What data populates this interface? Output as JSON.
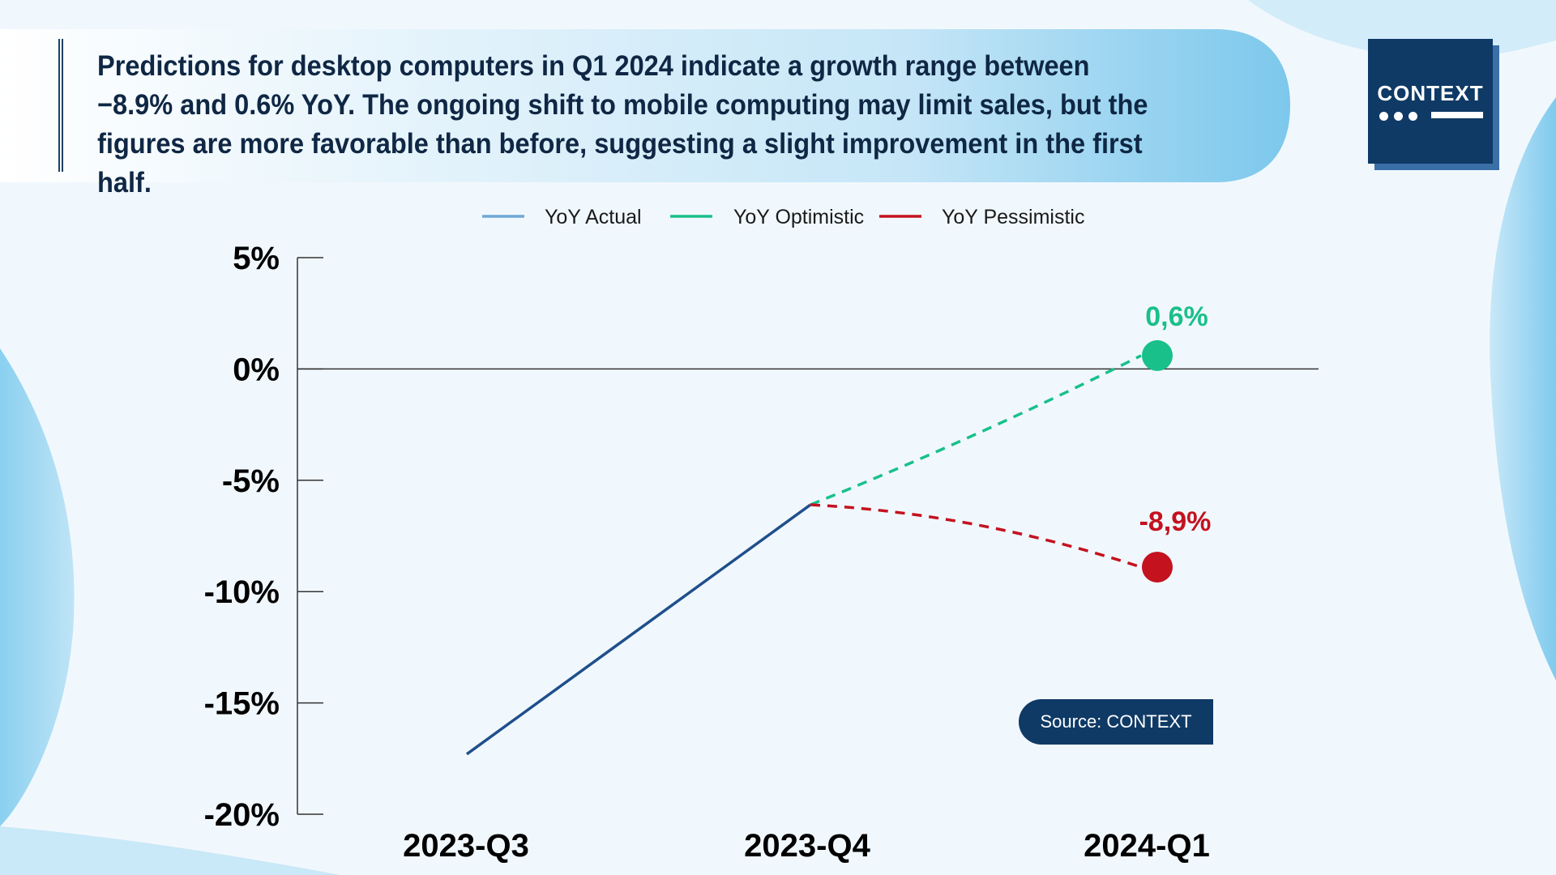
{
  "headline": "Predictions for desktop computers in Q1 2024 indicate a growth range between −8.9% and 0.6% YoY. The ongoing shift to mobile computing may limit sales, but the figures are more favorable than before, suggesting a slight improvement in the first half.",
  "logo": {
    "text": "CONTEXT"
  },
  "source": "Source: CONTEXT",
  "colors": {
    "actual_line": "#1f4f8c",
    "actual_legend": "#6fa8d8",
    "optimistic": "#19c08a",
    "pessimistic": "#c4121f",
    "navy": "#0f3a66"
  },
  "chart_data": {
    "type": "line",
    "categories": [
      "2023-Q3",
      "2023-Q4",
      "2024-Q1"
    ],
    "series": [
      {
        "name": "YoY Actual",
        "values": [
          -17.3,
          -6.1,
          null
        ],
        "style": "solid"
      },
      {
        "name": "YoY Optimistic",
        "values": [
          null,
          -6.1,
          0.6
        ],
        "style": "dashed"
      },
      {
        "name": "YoY Pessimistic",
        "values": [
          null,
          -6.1,
          -8.9
        ],
        "style": "dashed"
      }
    ],
    "point_labels": [
      {
        "series": "YoY Optimistic",
        "category": "2024-Q1",
        "text": "0,6%"
      },
      {
        "series": "YoY Pessimistic",
        "category": "2024-Q1",
        "text": "-8,9%"
      }
    ],
    "yticks": [
      "5%",
      "0%",
      "-5%",
      "-10%",
      "-15%",
      "-20%"
    ],
    "ylim": [
      -20,
      5
    ],
    "legend": "top-center"
  }
}
